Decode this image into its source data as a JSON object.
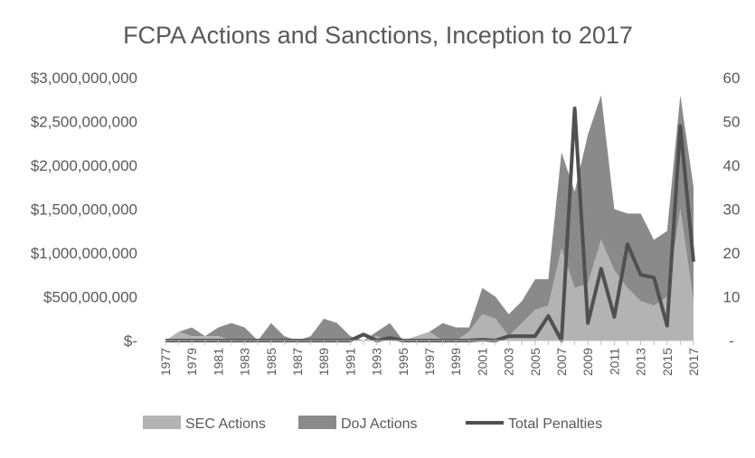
{
  "chart_data": {
    "type": "area",
    "title": "FCPA Actions and Sanctions, Inception to 2017",
    "x": [
      1977,
      1978,
      1979,
      1980,
      1981,
      1982,
      1983,
      1984,
      1985,
      1986,
      1987,
      1988,
      1989,
      1990,
      1991,
      1992,
      1993,
      1994,
      1995,
      1996,
      1997,
      1998,
      1999,
      2000,
      2001,
      2002,
      2003,
      2004,
      2005,
      2006,
      2007,
      2008,
      2009,
      2010,
      2011,
      2012,
      2013,
      2014,
      2015,
      2016,
      2017
    ],
    "x_tick_labels": [
      "1977",
      "1979",
      "1981",
      "1983",
      "1985",
      "1987",
      "1989",
      "1991",
      "1993",
      "1995",
      "1997",
      "1999",
      "2001",
      "2003",
      "2005",
      "2007",
      "2009",
      "2011",
      "2013",
      "2015",
      "2017"
    ],
    "y_left_tick_labels": [
      "$-",
      "$500,000,000",
      "$1,000,000,000",
      "$1,500,000,000",
      "$2,000,000,000",
      "$2,500,000,000",
      "$3,000,000,000"
    ],
    "y_left_lim": [
      0,
      3000000000
    ],
    "y_right_tick_labels": [
      "-",
      "10",
      "20",
      "30",
      "40",
      "50",
      "60"
    ],
    "y_right_lim": [
      0,
      60
    ],
    "grid": false,
    "legend_position": "bottom",
    "series": [
      {
        "name": "SEC Actions",
        "axis": "right",
        "style": "stacked-area",
        "color": "#b3b3b3",
        "values": [
          0,
          2,
          1,
          1,
          1,
          0,
          0,
          0,
          0,
          0,
          0,
          0,
          0,
          0,
          0,
          0,
          1,
          0,
          0,
          1,
          2,
          0,
          0,
          2,
          6,
          5,
          1,
          4,
          7,
          8,
          21,
          12,
          13,
          23,
          16,
          12,
          9,
          8,
          10,
          30,
          9
        ]
      },
      {
        "name": "DoJ Actions",
        "axis": "right",
        "style": "stacked-area",
        "color": "#8a8a8a",
        "values": [
          0,
          0,
          2,
          0,
          2,
          4,
          3,
          0,
          4,
          1,
          0,
          1,
          5,
          4,
          1,
          0,
          1,
          4,
          0,
          0,
          0,
          4,
          3,
          1,
          6,
          5,
          5,
          5,
          7,
          6,
          22,
          22,
          34,
          33,
          14,
          17,
          20,
          15,
          15,
          26,
          26
        ]
      },
      {
        "name": "Total Penalties",
        "axis": "left",
        "style": "line",
        "color": "#505050",
        "values": [
          0,
          0,
          0,
          0,
          0,
          0,
          0,
          0,
          0,
          0,
          0,
          0,
          0,
          0,
          0,
          70000000,
          0,
          30000000,
          0,
          0,
          0,
          0,
          0,
          0,
          10000000,
          0,
          50000000,
          50000000,
          50000000,
          280000000,
          0,
          2650000000,
          200000000,
          820000000,
          270000000,
          1100000000,
          750000000,
          720000000,
          170000000,
          2450000000,
          900000000
        ]
      }
    ]
  },
  "legend": [
    {
      "label": "SEC Actions",
      "swatch": "box",
      "color": "#b3b3b3"
    },
    {
      "label": "DoJ Actions",
      "swatch": "box",
      "color": "#8a8a8a"
    },
    {
      "label": "Total Penalties",
      "swatch": "line",
      "color": "#505050"
    }
  ]
}
